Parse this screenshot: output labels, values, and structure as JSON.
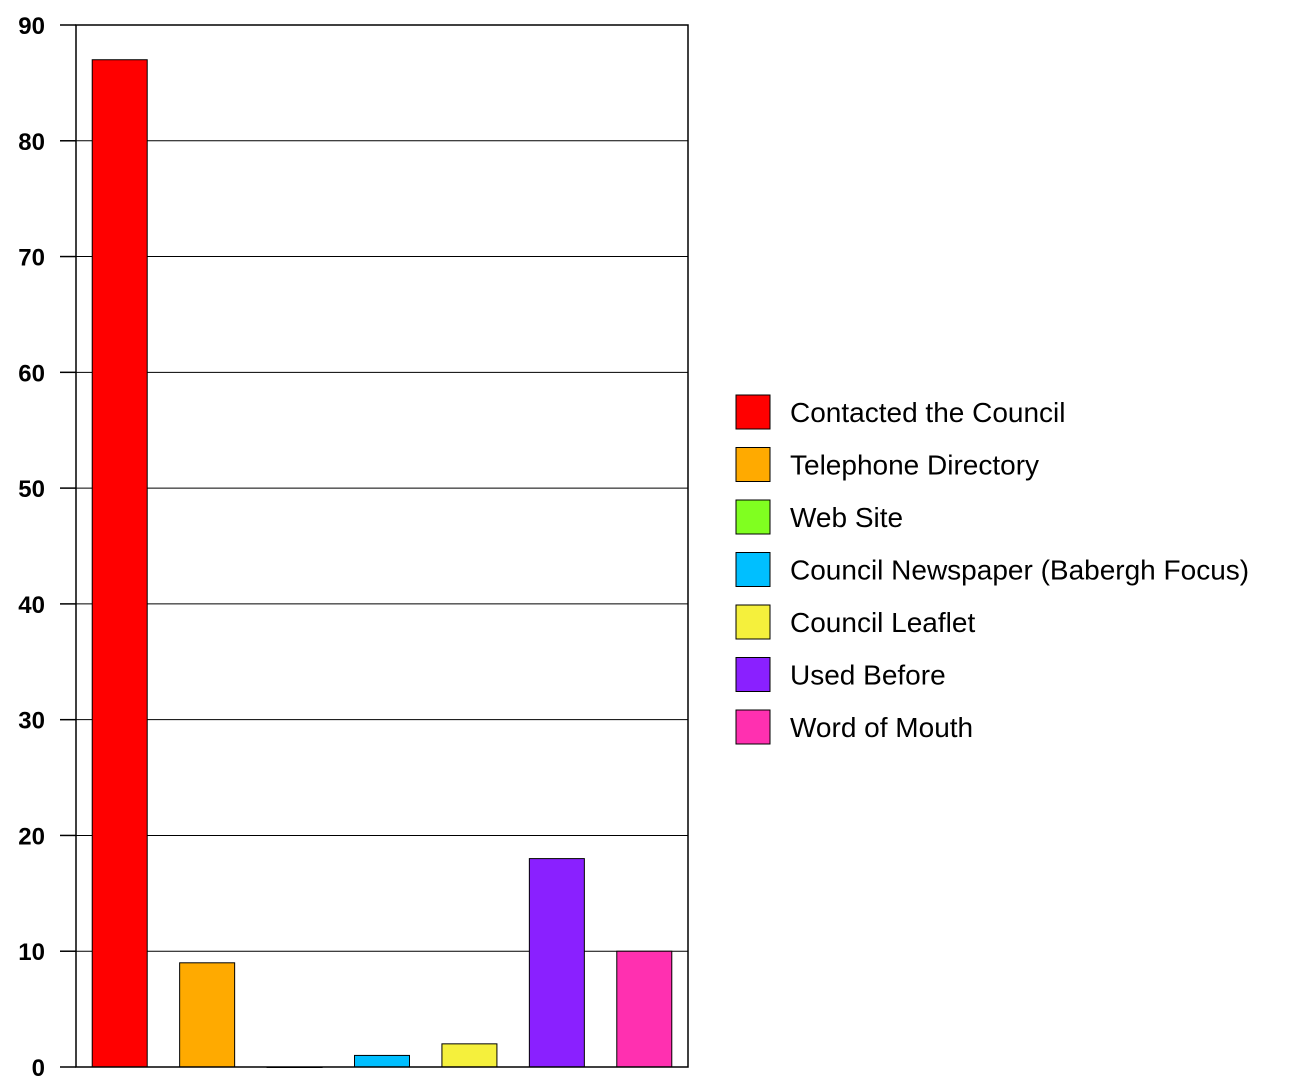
{
  "chart_data": {
    "type": "bar",
    "title": "",
    "xlabel": "",
    "ylabel": "",
    "ylim": [
      0,
      90
    ],
    "yticks": [
      0,
      10,
      20,
      30,
      40,
      50,
      60,
      70,
      80,
      90
    ],
    "grid": true,
    "legend_position": "right",
    "categories": [
      "Contacted the Council",
      "Telephone Directory",
      "Web Site",
      "Council Newspaper (Babergh Focus)",
      "Council Leaflet",
      "Used Before",
      "Word of Mouth"
    ],
    "values": [
      87,
      9,
      0,
      1,
      2,
      18,
      10
    ],
    "colors": [
      "#ff0000",
      "#ffaa00",
      "#80ff20",
      "#00bfff",
      "#f5f03c",
      "#8a20ff",
      "#ff30b0"
    ]
  }
}
